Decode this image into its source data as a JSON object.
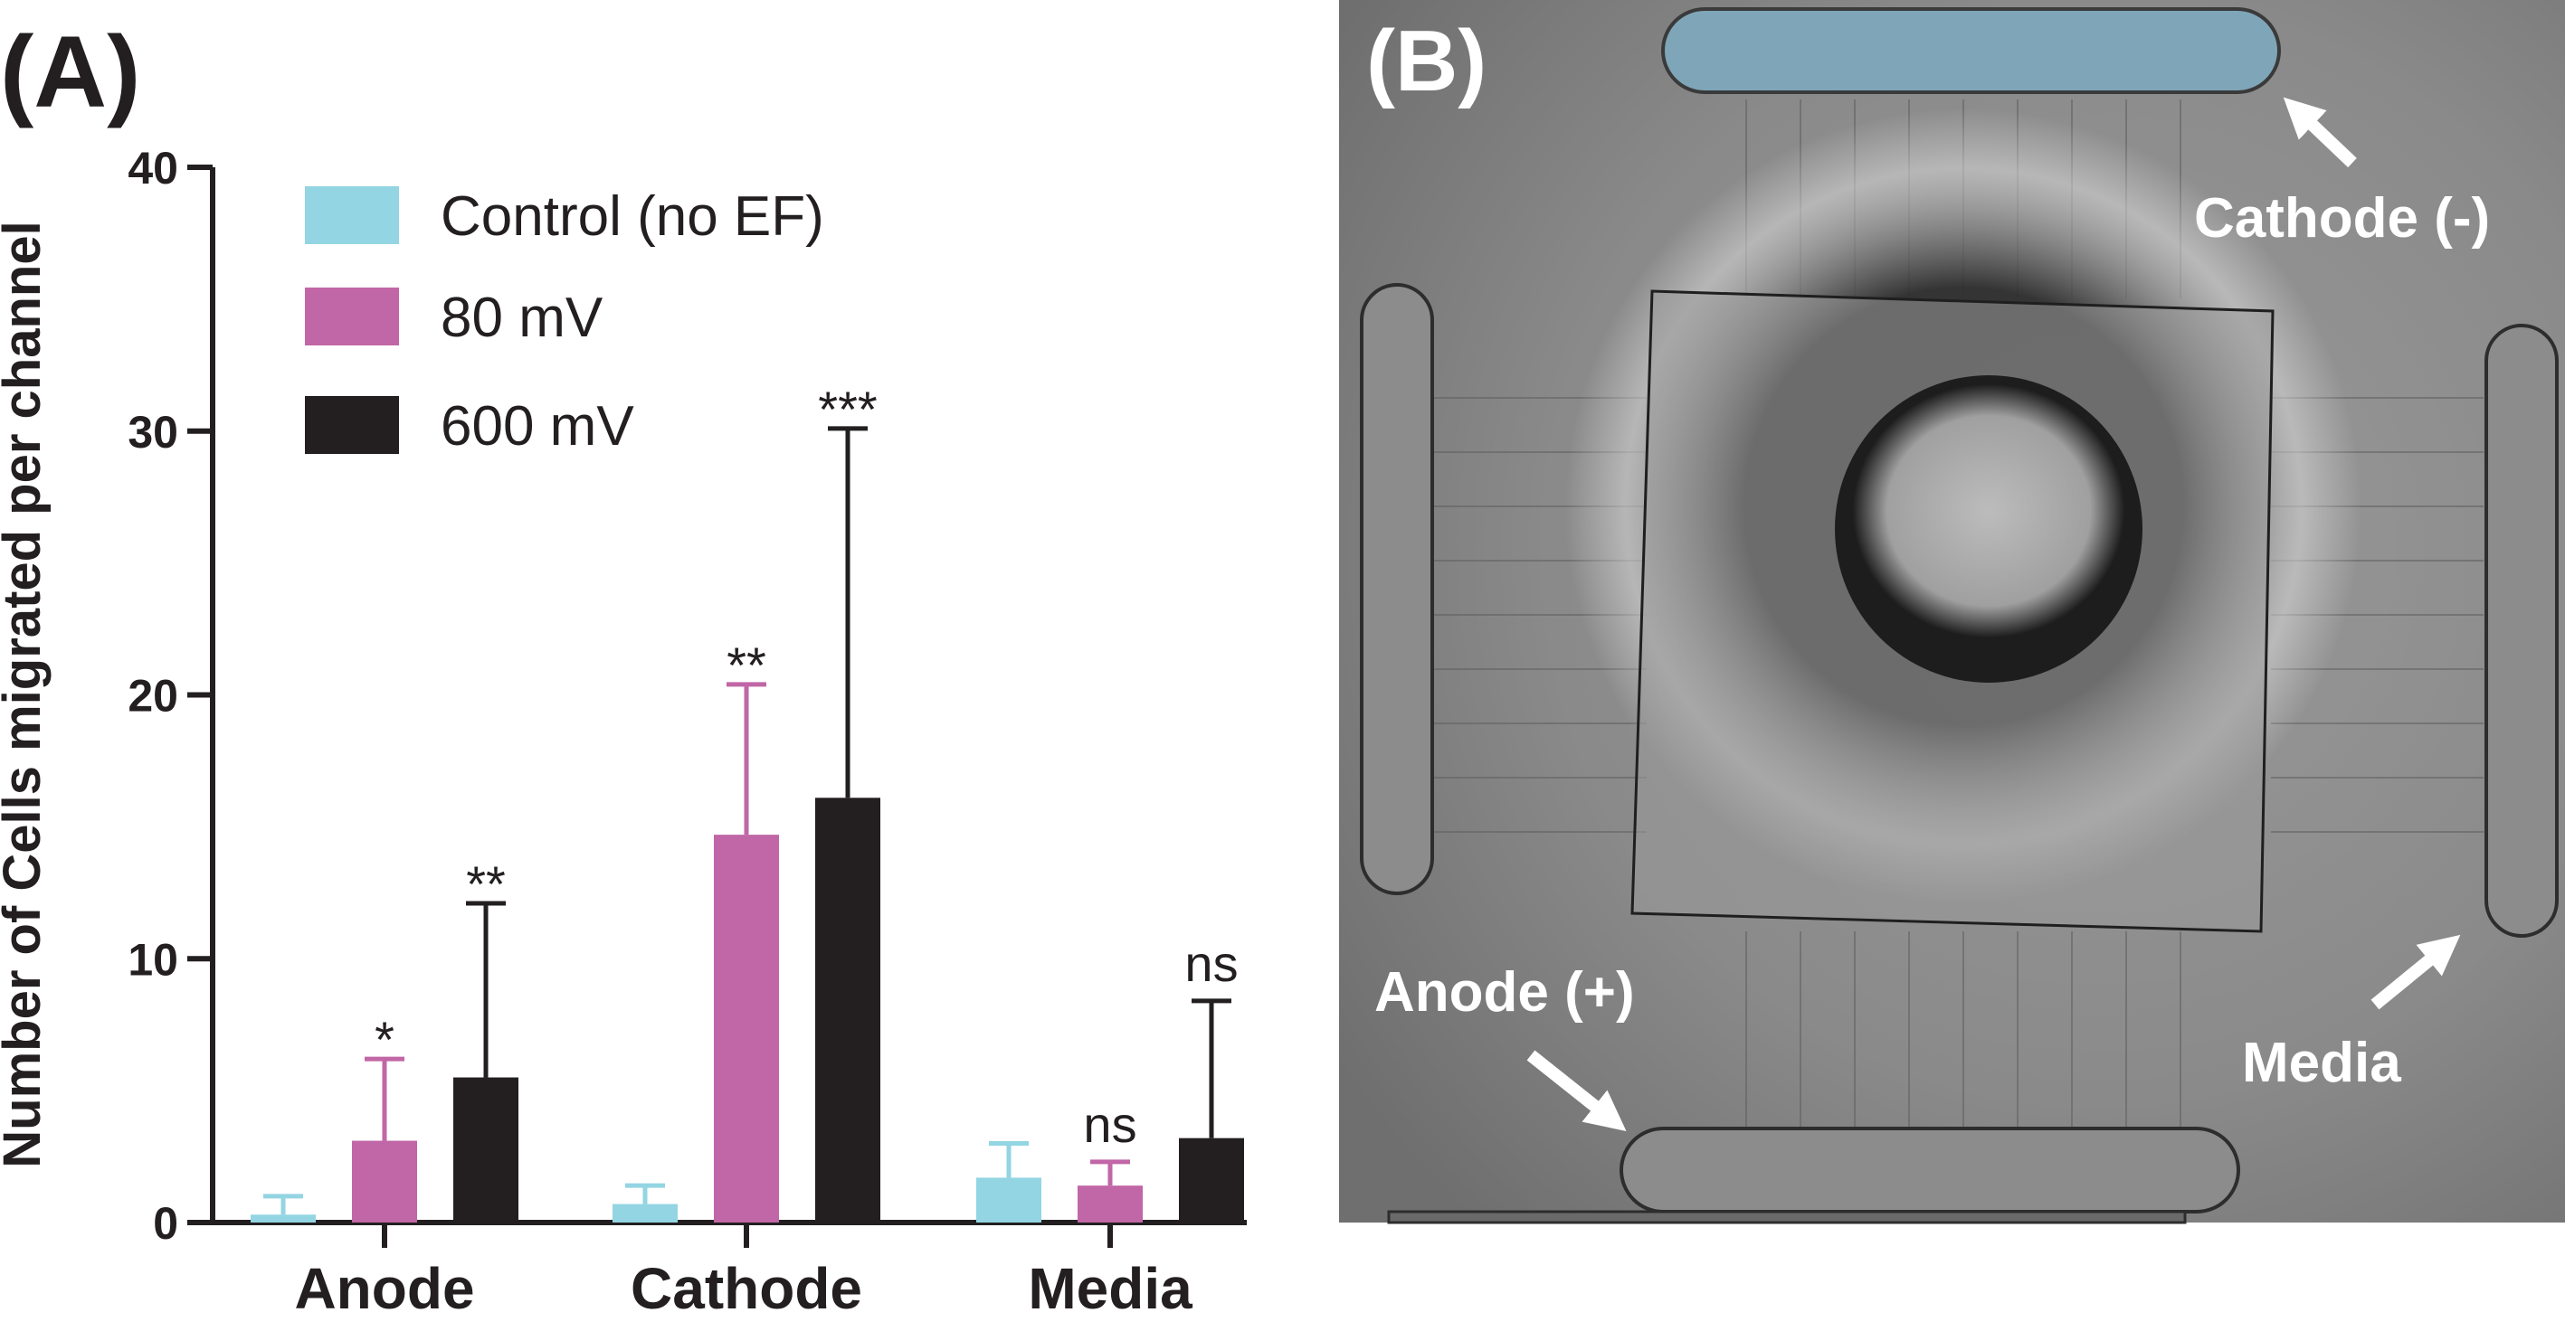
{
  "panel_a_label": "(A)",
  "panel_b_label": "(B)",
  "chart_data": {
    "type": "bar",
    "ylabel": "Number of Cells migrated per channel",
    "xlabel": "",
    "ylim": [
      0,
      40
    ],
    "yticks": [
      0,
      10,
      20,
      30,
      40
    ],
    "categories": [
      "Anode",
      "Cathode",
      "Media"
    ],
    "series": [
      {
        "name": "Control (no EF)",
        "color": "#93d5e2",
        "values": [
          0.3,
          0.7,
          1.7
        ],
        "errors": [
          0.7,
          0.7,
          1.3
        ],
        "significance": [
          "",
          "",
          ""
        ]
      },
      {
        "name": "80 mV",
        "color": "#c166a6",
        "values": [
          3.1,
          14.7,
          1.4
        ],
        "errors": [
          3.1,
          5.7,
          0.9
        ],
        "significance": [
          "*",
          "**",
          "ns"
        ]
      },
      {
        "name": "600 mV",
        "color": "#231f20",
        "values": [
          5.5,
          16.1,
          3.2
        ],
        "errors": [
          6.6,
          14.0,
          5.2
        ],
        "significance": [
          "**",
          "***",
          "ns"
        ]
      }
    ],
    "legend_position": "top-left",
    "grid": false
  },
  "image_panel": {
    "labels": {
      "cathode": "Cathode (-)",
      "anode": "Anode (+)",
      "media": "Media"
    },
    "colors": {
      "background": "#7f7f7f",
      "cathode_highlight": "#7fa6b8"
    }
  }
}
